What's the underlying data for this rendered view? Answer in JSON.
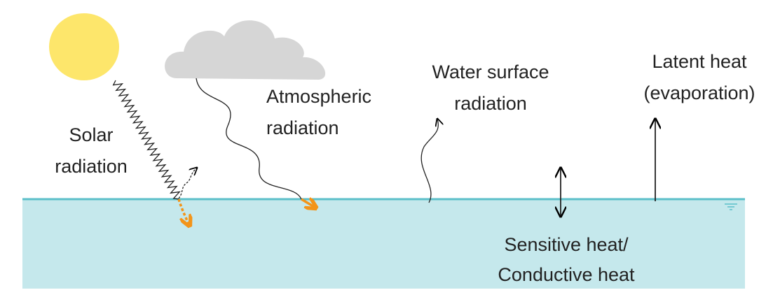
{
  "nodes": [
    {
      "lines": [
        "Solar",
        "radiation"
      ]
    },
    {
      "lines": [
        "Atmospheric",
        "radiation"
      ]
    },
    {
      "lines": [
        "Water surface",
        "radiation"
      ]
    },
    {
      "lines": [
        "Latent heat",
        "(evaporation)"
      ]
    },
    {
      "lines": [
        "Sensitive heat/",
        "Conductive heat"
      ]
    }
  ]
}
